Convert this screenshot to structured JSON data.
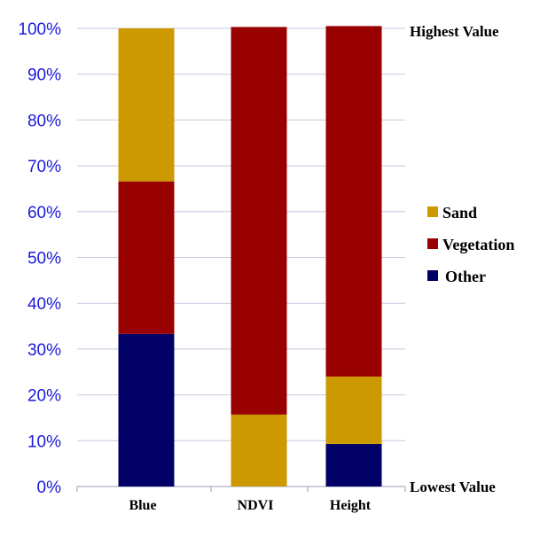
{
  "chart_data": {
    "type": "stacked-bar",
    "categories": [
      "Blue",
      "NDVI",
      "Height"
    ],
    "series": [
      {
        "name": "Other",
        "color": "#000066",
        "values": [
          33.3,
          0,
          9.3
        ]
      },
      {
        "name": "Sand",
        "color": "#cc9900",
        "values": [
          0,
          15.7,
          14.7
        ]
      },
      {
        "name": "Vegetation",
        "color": "#990000",
        "values": [
          33.3,
          84.6,
          76.5
        ]
      },
      {
        "name": "Sand",
        "color": "#cc9900",
        "values": [
          33.4,
          0,
          0
        ]
      }
    ],
    "ylim": [
      0,
      100
    ],
    "yticks": [
      "0%",
      "10%",
      "20%",
      "30%",
      "40%",
      "50%",
      "60%",
      "70%",
      "80%",
      "90%",
      "100%"
    ],
    "top_label": "Highest Value",
    "bottom_label": "Lowest Value",
    "legend": [
      {
        "name": "Sand",
        "color": "#cc9900"
      },
      {
        "name": "Vegetation",
        "color": "#990000"
      },
      {
        "name": "Other",
        "color": "#000066"
      }
    ],
    "grid": true
  }
}
